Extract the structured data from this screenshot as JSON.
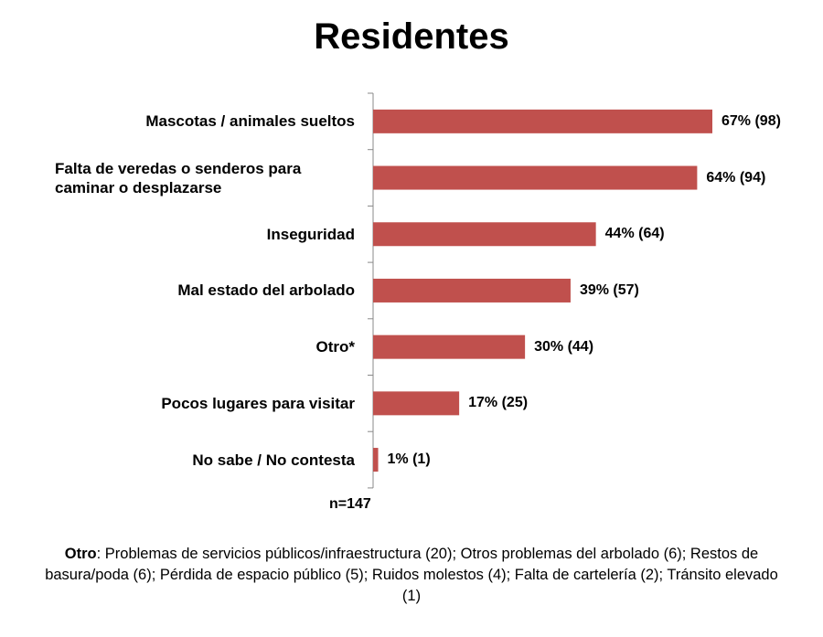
{
  "chart_data": {
    "type": "bar",
    "orientation": "horizontal",
    "title": "Residentes",
    "categories": [
      "Mascotas / animales sueltos",
      "Falta de veredas o senderos para caminar o desplazarse",
      "Inseguridad",
      "Mal estado del arbolado",
      "Otro*",
      "Pocos lugares para visitar",
      "No sabe / No contesta"
    ],
    "values": [
      67,
      64,
      44,
      39,
      30,
      17,
      1
    ],
    "value_labels": [
      "67% (98)",
      "64% (94)",
      "44% (64)",
      "39% (57)",
      "30% (44)",
      "17% (25)",
      "1% (1)"
    ],
    "color": "#c0504d",
    "note": "n=147",
    "footnote": {
      "label": "Otro",
      "text": ": Problemas de servicios públicos/infraestructura (20); Otros problemas del arbolado (6); Restos de basura/poda (6); Pérdida de espacio público (5); Ruidos molestos (4); Falta de cartelería (2); Tránsito elevado (1)"
    }
  }
}
